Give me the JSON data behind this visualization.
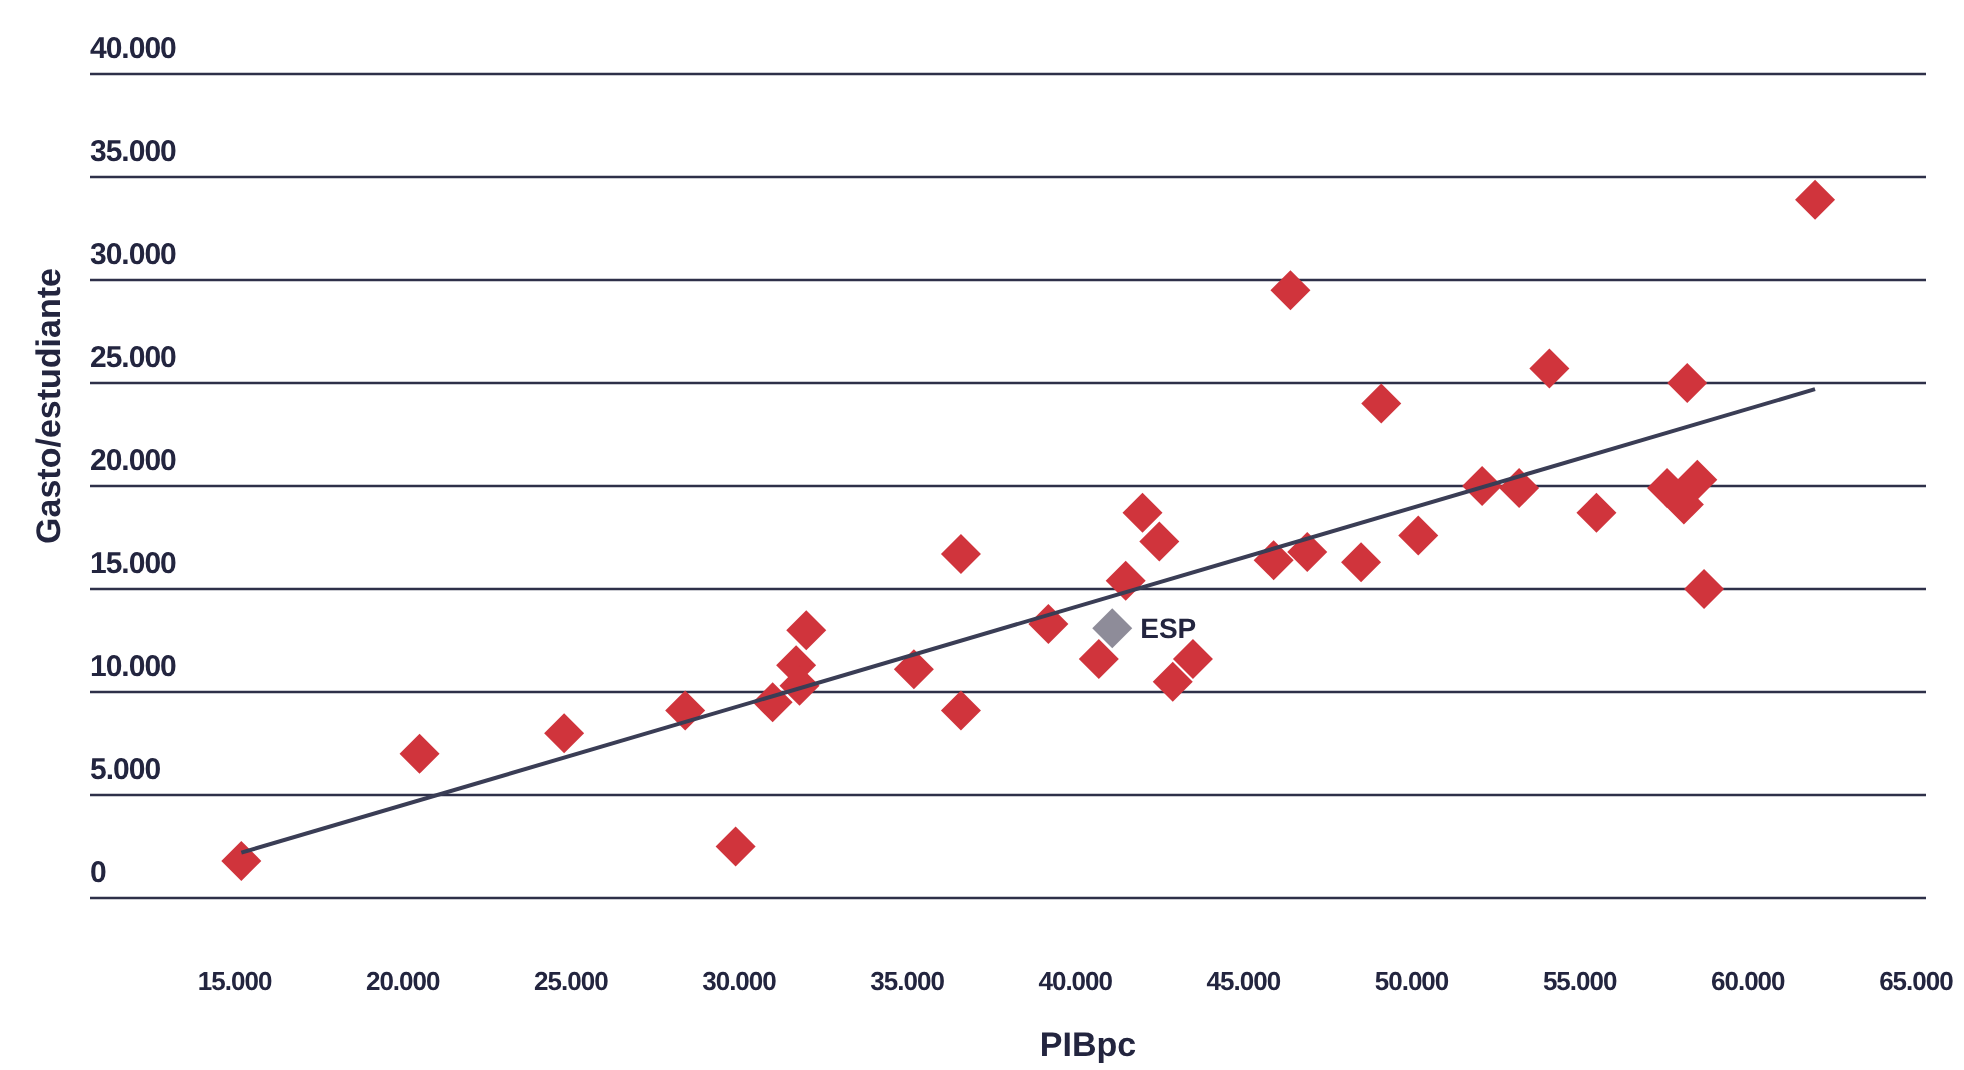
{
  "chart_data": {
    "type": "scatter",
    "xlabel": "PIBpc",
    "ylabel": "Gasto/estudiante",
    "marker": "diamond",
    "grid": "y",
    "xlim": [
      10700,
      65300
    ],
    "ylim": [
      0,
      40000
    ],
    "xticks": [
      {
        "value": 15000,
        "label": "15.000"
      },
      {
        "value": 20000,
        "label": "20.000"
      },
      {
        "value": 25000,
        "label": "25.000"
      },
      {
        "value": 30000,
        "label": "30.000"
      },
      {
        "value": 35000,
        "label": "35.000"
      },
      {
        "value": 40000,
        "label": "40.000"
      },
      {
        "value": 45000,
        "label": "45.000"
      },
      {
        "value": 50000,
        "label": "50.000"
      },
      {
        "value": 55000,
        "label": "55.000"
      },
      {
        "value": 60000,
        "label": "60.000"
      },
      {
        "value": 65000,
        "label": "65.000"
      }
    ],
    "yticks": [
      0,
      {
        "value": 5000,
        "label": "5.000"
      },
      {
        "value": 10000,
        "label": "10.000"
      },
      {
        "value": 15000,
        "label": "15.000"
      },
      {
        "value": 20000,
        "label": "20.000"
      },
      {
        "value": 25000,
        "label": "25.000"
      },
      {
        "value": 30000,
        "label": "30.000"
      },
      {
        "value": 35000,
        "label": "35.000"
      },
      {
        "value": 40000,
        "label": "40.000"
      }
    ],
    "series": [
      {
        "type": "line",
        "color": "#3a3d55",
        "x": [
          15200,
          62000
        ],
        "values": [
          2200,
          24700
        ],
        "marker": "none"
      },
      {
        "color": "#d0343c",
        "x": [
          15200,
          20500,
          24800,
          28400,
          29900,
          31000,
          31700,
          31800,
          32000,
          35200,
          36600,
          36600,
          39200,
          40700,
          41500,
          42000,
          42500,
          42900,
          43500,
          45900,
          46400,
          46900,
          48500,
          49100,
          50200,
          52100,
          53200,
          54100,
          55500,
          57600,
          58100,
          58200,
          58500,
          58700,
          62000
        ],
        "values": [
          1800,
          7000,
          8000,
          9100,
          2500,
          9500,
          11300,
          10300,
          13000,
          11100,
          16700,
          9100,
          13300,
          11600,
          15400,
          18700,
          17300,
          10500,
          11600,
          16400,
          29500,
          16800,
          16300,
          24000,
          17600,
          20000,
          19900,
          25700,
          18700,
          19900,
          19100,
          25000,
          20300,
          15000,
          33900
        ]
      },
      {
        "color": "#8e8c99",
        "x": [
          41100
        ],
        "values": [
          13100
        ]
      }
    ],
    "annotations": [
      {
        "text": "ESP",
        "x": 41100,
        "y": 13100
      }
    ]
  }
}
